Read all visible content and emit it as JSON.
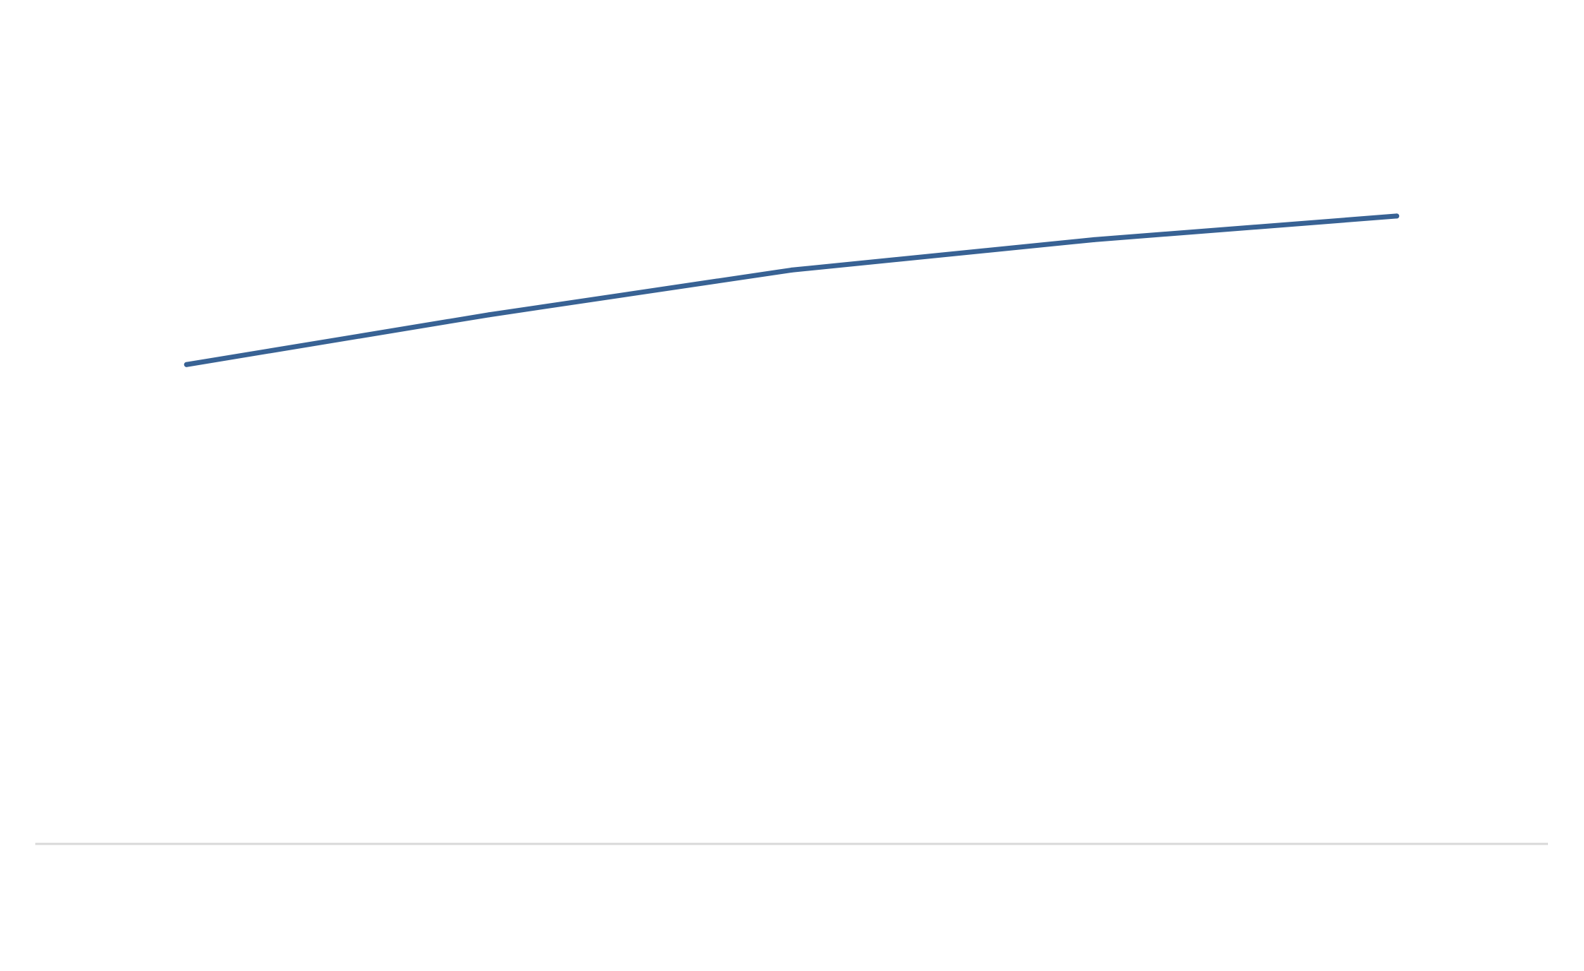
{
  "chart_data": {
    "type": "line",
    "title": "",
    "xlabel": "",
    "ylabel": "",
    "x": [
      1,
      2,
      3,
      4,
      5
    ],
    "series": [
      {
        "values": [
          56.8,
          62.7,
          68.0,
          71.6,
          74.4
        ]
      }
    ],
    "xlim": [
      0.5,
      5.5
    ],
    "ylim": [
      0,
      100
    ],
    "grid": false,
    "legend": "none",
    "colors": {
      "line": "#386294",
      "baseline": "#d9d9d9",
      "background": "#ffffff"
    }
  }
}
